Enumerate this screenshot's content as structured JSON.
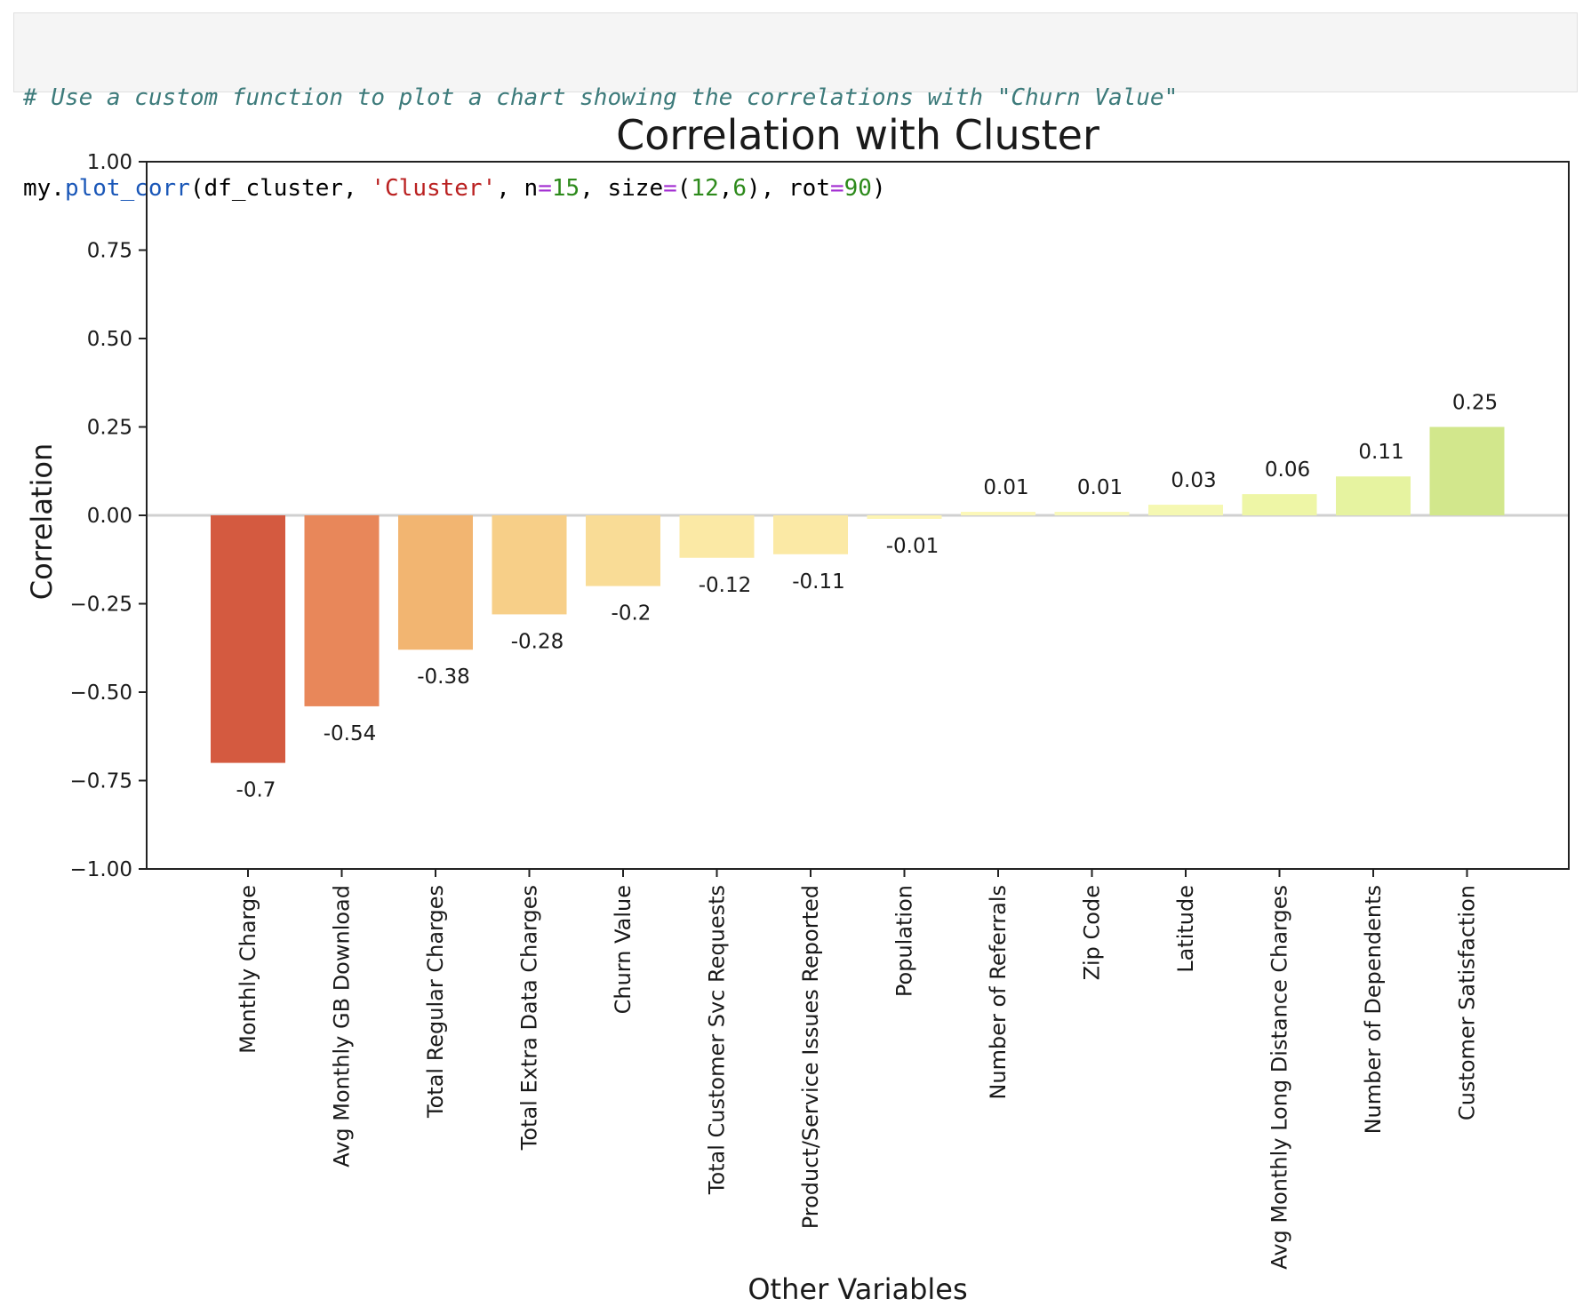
{
  "code": {
    "comment": "# Use a custom function to plot a chart showing the correlations with \"Churn Value\"",
    "call_prefix": "my.",
    "func": "plot_corr",
    "arg1": "(df_cluster, ",
    "arg_str": "'Cluster'",
    "arg_n_key": ", n",
    "arg_n_val": "15",
    "arg_size_key": ", size",
    "arg_size_open": "(",
    "arg_size_w": "12",
    "arg_size_comma": ",",
    "arg_size_h": "6",
    "arg_rot_key": "), rot",
    "arg_rot_val": "90",
    "close": ")",
    "eq": "="
  },
  "chart_data": {
    "type": "bar",
    "title": "Correlation with Cluster",
    "xlabel": "Other Variables",
    "ylabel": "Correlation",
    "ylim": [
      -1.0,
      1.0
    ],
    "yticks": [
      "1.00",
      "0.75",
      "0.50",
      "0.25",
      "0.00",
      "−0.25",
      "−0.50",
      "−0.75",
      "−1.00"
    ],
    "ytick_values": [
      1.0,
      0.75,
      0.5,
      0.25,
      0.0,
      -0.25,
      -0.5,
      -0.75,
      -1.0
    ],
    "categories": [
      "Monthly Charge",
      "Avg Monthly GB Download",
      "Total Regular Charges",
      "Total Extra Data Charges",
      "Churn Value",
      "Total Customer Svc Requests",
      "Product/Service Issues Reported",
      "Population",
      "Number of Referrals",
      "Zip Code",
      "Latitude",
      "Avg Monthly Long Distance Charges",
      "Number of Dependents",
      "Customer Satisfaction"
    ],
    "values": [
      -0.7,
      -0.54,
      -0.38,
      -0.28,
      -0.2,
      -0.12,
      -0.11,
      -0.01,
      0.01,
      0.01,
      0.03,
      0.06,
      0.11,
      0.25
    ],
    "labels": [
      "-0.7",
      "-0.54",
      "-0.38",
      "-0.28",
      "-0.2",
      "-0.12",
      "-0.11",
      "-0.01",
      "0.01",
      "0.01",
      "0.03",
      "0.06",
      "0.11",
      "0.25"
    ],
    "colors": [
      "#d45a40",
      "#e8875a",
      "#f2b571",
      "#f7cf88",
      "#f9dc96",
      "#fbe9a5",
      "#fbe9a5",
      "#fdf5b4",
      "#fcf8b9",
      "#f9f9bb",
      "#f5f8b2",
      "#eef6a6",
      "#e6f3a0",
      "#d2e78c"
    ],
    "zero_line": true,
    "grid": false
  }
}
